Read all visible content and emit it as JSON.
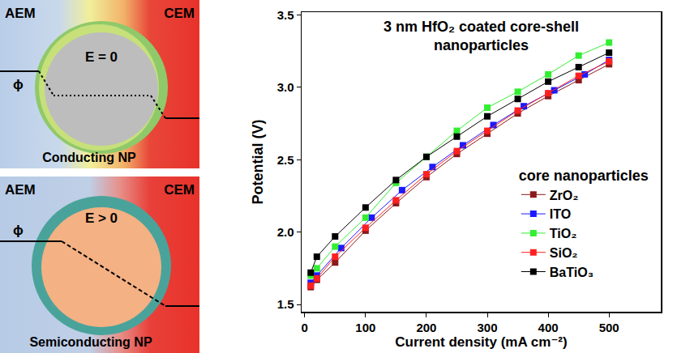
{
  "diagram": {
    "panels": [
      {
        "left_label": "AEM",
        "right_label": "CEM",
        "potential_label": "ϕ",
        "field_label": "E = 0",
        "caption": "Conducting NP"
      },
      {
        "left_label": "AEM",
        "right_label": "CEM",
        "potential_label": "ϕ",
        "field_label": "E > 0",
        "caption": "Semiconducting NP"
      }
    ]
  },
  "chart_data": {
    "type": "line",
    "title": "3 nm HfO₂ coated core-shell nanoparticles",
    "x_label": "Current density (mA cm⁻²)",
    "y_label": "Potential (V)",
    "legend_title": "core nanoparticles",
    "legend": "right",
    "marker": "square",
    "grid": false,
    "xlim": [
      -5,
      585
    ],
    "xticks": [
      0,
      100,
      200,
      300,
      400,
      500
    ],
    "ylim": [
      1.45,
      3.52
    ],
    "yticks": [
      1.5,
      {
        "value": 2,
        "label": "2.0"
      },
      2.5,
      {
        "value": 3,
        "label": "3.0"
      },
      3.5
    ],
    "series": [
      {
        "name": "ZrO₂",
        "color": "#8b1a1a",
        "x": [
          10,
          20,
          50,
          100,
          150,
          200,
          250,
          300,
          350,
          400,
          450,
          500
        ],
        "values": [
          1.62,
          1.67,
          1.79,
          2.01,
          2.2,
          2.38,
          2.54,
          2.68,
          2.82,
          2.94,
          3.05,
          3.16
        ]
      },
      {
        "name": "ITO",
        "color": "#1a1aff",
        "x": [
          10,
          20,
          60,
          110,
          160,
          210,
          260,
          310,
          360,
          410,
          460,
          500
        ],
        "values": [
          1.65,
          1.7,
          1.89,
          2.1,
          2.29,
          2.45,
          2.6,
          2.74,
          2.87,
          2.98,
          3.09,
          3.19
        ]
      },
      {
        "name": "TiO₂",
        "color": "#33ee33",
        "x": [
          10,
          20,
          50,
          100,
          150,
          200,
          250,
          300,
          350,
          400,
          450,
          500
        ],
        "values": [
          1.7,
          1.75,
          1.9,
          2.1,
          2.34,
          2.52,
          2.7,
          2.86,
          2.97,
          3.09,
          3.22,
          3.31
        ]
      },
      {
        "name": "SiO₂",
        "color": "#ff2020",
        "x": [
          10,
          20,
          50,
          100,
          150,
          200,
          250,
          300,
          350,
          400,
          450,
          500
        ],
        "values": [
          1.63,
          1.68,
          1.83,
          2.03,
          2.22,
          2.4,
          2.56,
          2.7,
          2.84,
          2.96,
          3.08,
          3.18
        ]
      },
      {
        "name": "BaTiO₃",
        "color": "#000000",
        "x": [
          10,
          20,
          50,
          100,
          150,
          200,
          250,
          300,
          350,
          400,
          450,
          500
        ],
        "values": [
          1.72,
          1.83,
          1.97,
          2.17,
          2.36,
          2.52,
          2.66,
          2.8,
          2.92,
          3.04,
          3.14,
          3.24
        ]
      }
    ]
  }
}
